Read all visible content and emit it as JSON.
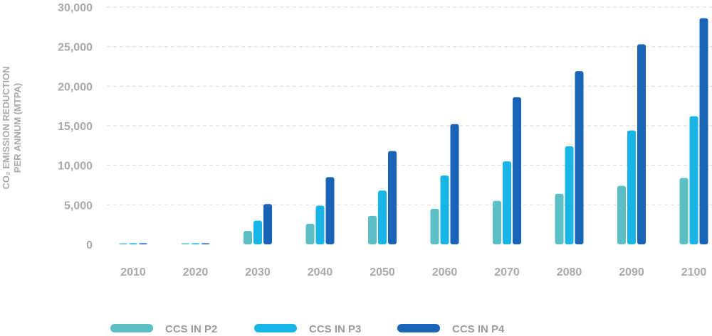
{
  "chart_data": {
    "type": "bar",
    "ylabel_line1": "CO₂ EMISSION REDUCTION",
    "ylabel_line2": "PER ANNUM (MTPA)",
    "categories": [
      "2010",
      "2020",
      "2030",
      "2040",
      "2050",
      "2060",
      "2070",
      "2080",
      "2090",
      "2100"
    ],
    "yticks": [
      0,
      5000,
      10000,
      15000,
      20000,
      25000,
      30000
    ],
    "ytick_labels": [
      "0",
      "5,000",
      "10,000",
      "15,000",
      "20,000",
      "25,000",
      "30,000"
    ],
    "ylim": [
      0,
      30000
    ],
    "grid": true,
    "legend_position": "bottom",
    "series": [
      {
        "name": "CCS IN P2",
        "color": "#5bbfc5",
        "values": [
          150,
          150,
          1700,
          2600,
          3600,
          4500,
          5500,
          6400,
          7400,
          8400
        ]
      },
      {
        "name": "CCS IN P3",
        "color": "#19b5e6",
        "values": [
          150,
          150,
          3000,
          4900,
          6800,
          8700,
          10500,
          12400,
          14400,
          16200
        ]
      },
      {
        "name": "CCS IN P4",
        "color": "#1a64b8",
        "values": [
          150,
          150,
          5100,
          8500,
          11800,
          15200,
          18600,
          21900,
          25300,
          28600
        ]
      }
    ]
  }
}
